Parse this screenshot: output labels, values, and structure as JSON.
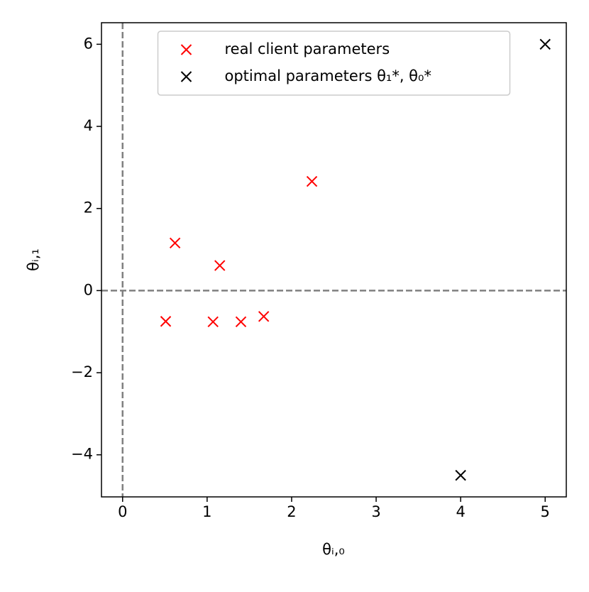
{
  "chart_data": {
    "type": "scatter",
    "x_label": "θᵢ,₀",
    "y_label": "θᵢ,₁",
    "xlim": [
      -0.25,
      5.25
    ],
    "ylim": [
      -5.025,
      6.525
    ],
    "xticks": [
      0,
      1,
      2,
      3,
      4,
      5
    ],
    "yticks": [
      {
        "value": -4,
        "label": "−4"
      },
      {
        "value": -2,
        "label": "−2"
      },
      0,
      2,
      4,
      6
    ],
    "reference_lines": {
      "x": 0,
      "y": 0,
      "color": "#808080"
    },
    "legend": "upper center",
    "series": [
      {
        "name": "real client parameters",
        "color": "#ff0000",
        "x": [
          0.51,
          0.62,
          1.07,
          1.15,
          1.4,
          1.67,
          2.24
        ],
        "values": [
          -0.75,
          1.16,
          -0.76,
          0.61,
          -0.76,
          -0.63,
          2.66
        ]
      },
      {
        "name": "optimal parameters θ₁*, θ₀*",
        "color": "#000000",
        "x": [
          4,
          5
        ],
        "values": [
          -4.5,
          6
        ]
      }
    ]
  }
}
